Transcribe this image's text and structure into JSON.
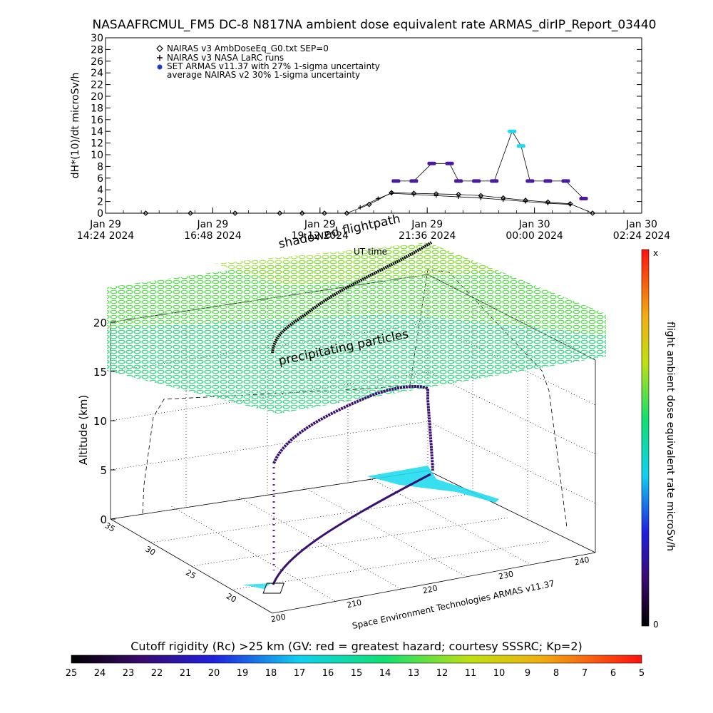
{
  "header": {
    "title": "NASAAFRCMUL_FM5 DC-8   N817NA ambient dose equivalent rate ARMAS_dirIP_Report_03440"
  },
  "chart_data": [
    {
      "type": "scatter",
      "title": "NASAAFRCMUL_FM5 DC-8   N817NA ambient dose equivalent rate ARMAS_dirIP_Report_03440",
      "ylabel": "dH*(10)/dt microSv/h",
      "xlabel": "",
      "ylim": [
        0,
        30
      ],
      "yticks": [
        0,
        2,
        4,
        6,
        8,
        10,
        12,
        14,
        16,
        18,
        20,
        22,
        24,
        26,
        28,
        30
      ],
      "xticks": [
        {
          "day": "Jan 29",
          "time": "14:24 2024"
        },
        {
          "day": "Jan 29",
          "time": "16:48 2024"
        },
        {
          "day": "Jan 29",
          "time": "19:12 2024"
        },
        {
          "day": "Jan 29",
          "time": "21:36 2024"
        },
        {
          "day": "Jan 30",
          "time": "00:00 2024"
        },
        {
          "day": "Jan 30",
          "time": "02:24 2024"
        }
      ],
      "legend_placement": "top-left",
      "series": [
        {
          "name": "NAIRAS v3 AmbDoseEq_G0.txt SEP=0",
          "marker": "diamond",
          "color": "#000000",
          "x_hours": [
            0.0,
            1.0,
            2.0,
            3.0,
            3.5,
            4.0,
            4.5,
            5.0,
            5.5,
            6.0,
            6.5,
            7.0,
            7.5,
            8.0,
            8.5,
            9.0,
            9.5,
            10.0
          ],
          "values": [
            0.0,
            0.0,
            0.0,
            0.0,
            0.0,
            0.0,
            0.0,
            1.5,
            3.5,
            3.4,
            3.3,
            3.2,
            3.0,
            2.6,
            2.2,
            1.9,
            1.6,
            0.0
          ]
        },
        {
          "name": "NAIRAS v3 NASA LaRC runs",
          "marker": "plus",
          "color": "#000000",
          "x_hours": [
            4.8,
            5.2,
            5.5,
            6.0,
            6.5,
            7.0,
            7.5,
            8.0,
            8.5,
            9.0,
            9.5
          ],
          "values": [
            1.0,
            2.5,
            3.4,
            3.2,
            3.0,
            2.8,
            2.6,
            2.3,
            2.0,
            1.7,
            1.5
          ]
        },
        {
          "name": "SET ARMAS v11.37 with 27% 1-sigma uncertainty",
          "marker": "dot",
          "color": "#1a3ad6",
          "x_hours": [
            5.6,
            6.0,
            6.4,
            6.8,
            7.0,
            7.4,
            7.8,
            8.2,
            8.4,
            8.6,
            9.0,
            9.4,
            9.8
          ],
          "values": [
            5.5,
            5.5,
            8.5,
            8.5,
            5.5,
            5.5,
            5.5,
            14.0,
            11.5,
            5.5,
            5.5,
            5.5,
            2.5
          ]
        },
        {
          "name": "average NAIRAS v2 30% 1-sigma uncertainty",
          "marker": "none",
          "color": "#000000",
          "x_hours": [],
          "values": []
        }
      ]
    },
    {
      "type": "scatter",
      "title": "",
      "zlabel": "Altitude (km)",
      "zlim": [
        0,
        20
      ],
      "zticks": [
        0,
        5,
        10,
        15,
        20
      ],
      "lon_ticks": [
        "200",
        "210",
        "220",
        "230",
        "240"
      ],
      "lat_ticks": [
        "20",
        "25",
        "30",
        "35"
      ],
      "annotations": [
        "shadowed flightpath",
        "UT time",
        "precipitating particles"
      ],
      "credit": "Space Environment Technologies ARMAS v11.37",
      "colorbar": {
        "label": "flight ambient dose equivalent rate microSv/h",
        "top_label": "x",
        "bottom_label": "0"
      }
    }
  ],
  "cutoff_bar": {
    "label": "Cutoff rigidity (Rc) >25 km (GV: red = greatest hazard; courtesy SSSRC; Kp=2)",
    "ticks": [
      "25",
      "24",
      "23",
      "22",
      "21",
      "20",
      "19",
      "18",
      "17",
      "16",
      "15",
      "14",
      "13",
      "12",
      "11",
      "10",
      "9",
      "8",
      "7",
      "6",
      "5"
    ]
  }
}
